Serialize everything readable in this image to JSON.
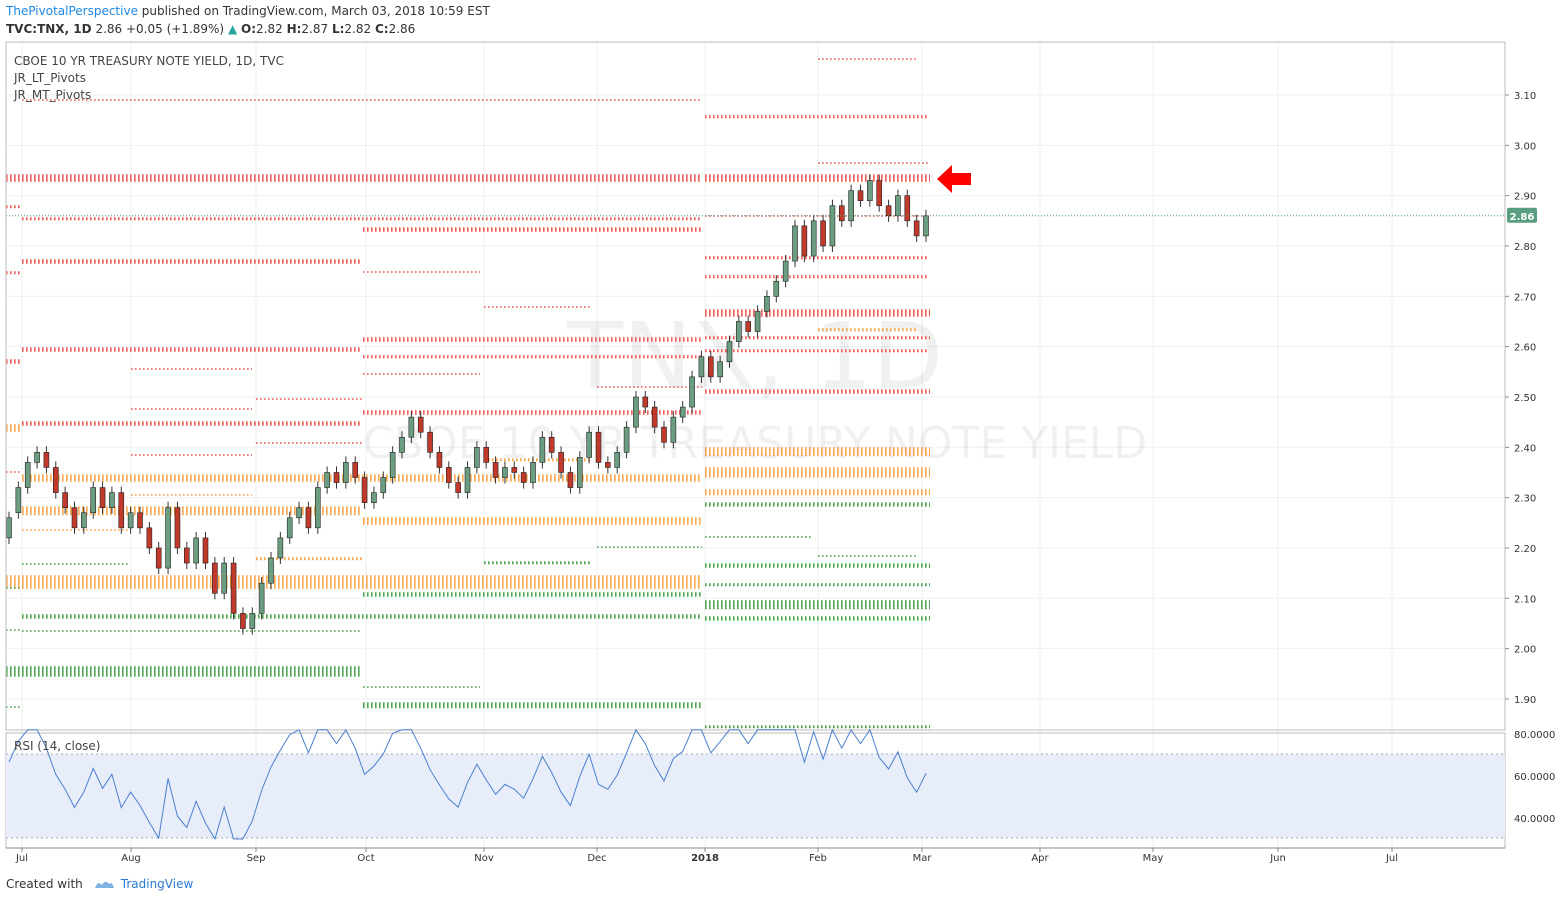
{
  "header": {
    "author": "ThePivotalPerspective",
    "published": "published on TradingView.com, March 03, 2018 10:59 EST",
    "symbol": "TVC:TNX, 1D",
    "last": "2.86",
    "change": "+0.05 (+1.89%)",
    "o_label": "O:",
    "o": "2.82",
    "h_label": "H:",
    "h": "2.87",
    "l_label": "L:",
    "l": "2.82",
    "c_label": "C:",
    "c": "2.86"
  },
  "legend": {
    "title": "CBOE 10 YR TREASURY NOTE YIELD, 1D, TVC",
    "ind1": "JR_LT_Pivots",
    "ind2": "JR_MT_Pivots"
  },
  "watermark": {
    "symbol": "TNX, 1D",
    "name": "CBOE 10 YR TREASURY NOTE YIELD"
  },
  "rsi": {
    "label": "RSI (14, close)",
    "axis": [
      "80.0000",
      "60.0000",
      "40.0000"
    ]
  },
  "footer": {
    "created": "Created with",
    "brand": "TradingView"
  },
  "colors": {
    "resistance": "#ef5350",
    "mid": "#ffa040",
    "support": "#43a047",
    "up_candle": "#6b9e80",
    "down_candle": "#c0392b",
    "rsi_line": "#4a7fd0",
    "rsi_band": "#e8eef9",
    "arrow": "#ff0000"
  },
  "chart_data": {
    "type": "candlestick",
    "title": "CBOE 10 YR TREASURY NOTE YIELD, 1D, TVC",
    "y_ticks": [
      "3.10",
      "3.00",
      "2.90",
      "2.80",
      "2.70",
      "2.60",
      "2.50",
      "2.40",
      "2.30",
      "2.20",
      "2.10",
      "2.00",
      "1.90"
    ],
    "ylim": [
      1.84,
      3.18
    ],
    "x_ticks": [
      "Jul",
      "Aug",
      "Sep",
      "Oct",
      "Nov",
      "Dec",
      "2018",
      "Feb",
      "Mar",
      "Apr",
      "May",
      "Jun",
      "Jul"
    ],
    "current_value": "2.86",
    "candles": [
      [
        2.22,
        2.26
      ],
      [
        2.27,
        2.32
      ],
      [
        2.32,
        2.37
      ],
      [
        2.37,
        2.39
      ],
      [
        2.39,
        2.36
      ],
      [
        2.36,
        2.31
      ],
      [
        2.31,
        2.28
      ],
      [
        2.28,
        2.24
      ],
      [
        2.24,
        2.27
      ],
      [
        2.27,
        2.32
      ],
      [
        2.32,
        2.28
      ],
      [
        2.28,
        2.31
      ],
      [
        2.31,
        2.24
      ],
      [
        2.24,
        2.27
      ],
      [
        2.27,
        2.24
      ],
      [
        2.24,
        2.2
      ],
      [
        2.2,
        2.16
      ],
      [
        2.16,
        2.28
      ],
      [
        2.28,
        2.2
      ],
      [
        2.2,
        2.17
      ],
      [
        2.17,
        2.22
      ],
      [
        2.22,
        2.17
      ],
      [
        2.17,
        2.11
      ],
      [
        2.11,
        2.17
      ],
      [
        2.17,
        2.07
      ],
      [
        2.07,
        2.04
      ],
      [
        2.04,
        2.07
      ],
      [
        2.07,
        2.13
      ],
      [
        2.13,
        2.18
      ],
      [
        2.18,
        2.22
      ],
      [
        2.22,
        2.26
      ],
      [
        2.26,
        2.28
      ],
      [
        2.28,
        2.24
      ],
      [
        2.24,
        2.32
      ],
      [
        2.32,
        2.35
      ],
      [
        2.35,
        2.33
      ],
      [
        2.33,
        2.37
      ],
      [
        2.37,
        2.34
      ],
      [
        2.34,
        2.29
      ],
      [
        2.29,
        2.31
      ],
      [
        2.31,
        2.34
      ],
      [
        2.34,
        2.39
      ],
      [
        2.39,
        2.42
      ],
      [
        2.42,
        2.46
      ],
      [
        2.46,
        2.43
      ],
      [
        2.43,
        2.39
      ],
      [
        2.39,
        2.36
      ],
      [
        2.36,
        2.33
      ],
      [
        2.33,
        2.31
      ],
      [
        2.31,
        2.36
      ],
      [
        2.36,
        2.4
      ],
      [
        2.4,
        2.37
      ],
      [
        2.37,
        2.34
      ],
      [
        2.34,
        2.36
      ],
      [
        2.36,
        2.35
      ],
      [
        2.35,
        2.33
      ],
      [
        2.33,
        2.37
      ],
      [
        2.37,
        2.42
      ],
      [
        2.42,
        2.39
      ],
      [
        2.39,
        2.35
      ],
      [
        2.35,
        2.32
      ],
      [
        2.32,
        2.38
      ],
      [
        2.38,
        2.43
      ],
      [
        2.43,
        2.37
      ],
      [
        2.37,
        2.36
      ],
      [
        2.36,
        2.39
      ],
      [
        2.39,
        2.44
      ],
      [
        2.44,
        2.5
      ],
      [
        2.5,
        2.48
      ],
      [
        2.48,
        2.44
      ],
      [
        2.44,
        2.41
      ],
      [
        2.41,
        2.46
      ],
      [
        2.46,
        2.48
      ],
      [
        2.48,
        2.54
      ],
      [
        2.54,
        2.58
      ],
      [
        2.58,
        2.54
      ],
      [
        2.54,
        2.57
      ],
      [
        2.57,
        2.61
      ],
      [
        2.61,
        2.65
      ],
      [
        2.65,
        2.63
      ],
      [
        2.63,
        2.67
      ],
      [
        2.67,
        2.7
      ],
      [
        2.7,
        2.73
      ],
      [
        2.73,
        2.77
      ],
      [
        2.77,
        2.84
      ],
      [
        2.84,
        2.78
      ],
      [
        2.78,
        2.85
      ],
      [
        2.85,
        2.8
      ],
      [
        2.8,
        2.88
      ],
      [
        2.88,
        2.85
      ],
      [
        2.85,
        2.91
      ],
      [
        2.91,
        2.89
      ],
      [
        2.89,
        2.93
      ],
      [
        2.93,
        2.88
      ],
      [
        2.88,
        2.86
      ],
      [
        2.86,
        2.9
      ],
      [
        2.9,
        2.85
      ],
      [
        2.85,
        2.82
      ],
      [
        2.82,
        2.86
      ]
    ]
  }
}
